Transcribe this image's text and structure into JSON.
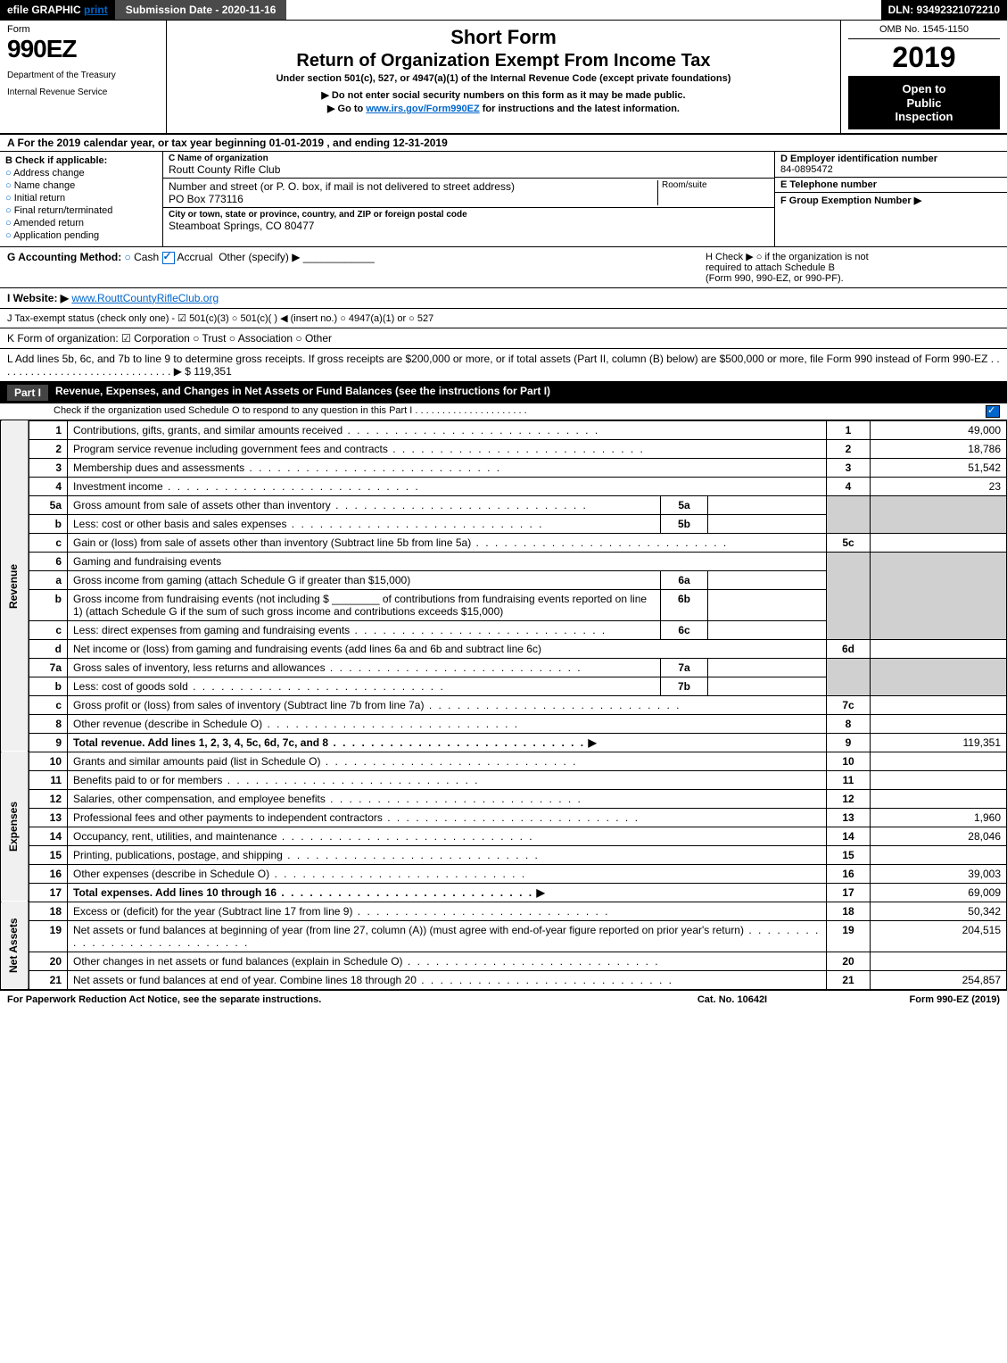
{
  "topbar": {
    "efile": "efile GRAPHIC",
    "print": "print",
    "submission": "Submission Date - 2020-11-16",
    "dln": "DLN: 93492321072210"
  },
  "header": {
    "form_label": "Form",
    "form_number": "990EZ",
    "dept1": "Department of the Treasury",
    "dept2": "Internal Revenue Service",
    "title1": "Short Form",
    "title2": "Return of Organization Exempt From Income Tax",
    "subtitle": "Under section 501(c), 527, or 4947(a)(1) of the Internal Revenue Code (except private foundations)",
    "note1": "▶ Do not enter social security numbers on this form as it may be made public.",
    "note2_pre": "▶ Go to ",
    "note2_link": "www.irs.gov/Form990EZ",
    "note2_post": " for instructions and the latest information.",
    "omb": "OMB No. 1545-1150",
    "year": "2019",
    "open1": "Open to",
    "open2": "Public",
    "open3": "Inspection"
  },
  "tax_year": "A  For the 2019 calendar year, or tax year beginning 01-01-2019 , and ending 12-31-2019",
  "section_b": {
    "label": "B  Check if applicable:",
    "items": [
      "Address change",
      "Name change",
      "Initial return",
      "Final return/terminated",
      "Amended return",
      "Application pending"
    ]
  },
  "section_c": {
    "name_label": "C Name of organization",
    "name": "Routt County Rifle Club",
    "addr_label": "Number and street (or P. O. box, if mail is not delivered to street address)",
    "room_label": "Room/suite",
    "addr": "PO Box 773116",
    "city_label": "City or town, state or province, country, and ZIP or foreign postal code",
    "city": "Steamboat Springs, CO  80477"
  },
  "section_d": {
    "label": "D Employer identification number",
    "value": "84-0895472"
  },
  "section_e": {
    "label": "E Telephone number",
    "value": ""
  },
  "section_f": {
    "label": "F Group Exemption Number  ▶",
    "value": ""
  },
  "section_g": {
    "label": "G Accounting Method:",
    "cash": "Cash",
    "accrual": "Accrual",
    "other": "Other (specify) ▶"
  },
  "section_h": {
    "line1": "H  Check ▶  ○  if the organization is not",
    "line2": "required to attach Schedule B",
    "line3": "(Form 990, 990-EZ, or 990-PF)."
  },
  "section_i": {
    "label": "I Website: ▶",
    "value": "www.RouttCountyRifleClub.org"
  },
  "section_j": "J Tax-exempt status (check only one) - ☑ 501(c)(3) ○ 501(c)(  ) ◀ (insert no.) ○ 4947(a)(1) or ○ 527",
  "section_k": "K Form of organization:  ☑ Corporation  ○ Trust  ○ Association  ○ Other",
  "section_l": {
    "text": "L Add lines 5b, 6c, and 7b to line 9 to determine gross receipts. If gross receipts are $200,000 or more, or if total assets (Part II, column (B) below) are $500,000 or more, file Form 990 instead of Form 990-EZ . . . . . . . . . . . . . . . . . . . . . . . . . . . . . . ▶",
    "amount": "$ 119,351"
  },
  "part1": {
    "label": "Part I",
    "title": "Revenue, Expenses, and Changes in Net Assets or Fund Balances (see the instructions for Part I)",
    "sched_o": "Check if the organization used Schedule O to respond to any question in this Part I . . . . . . . . . . . . . . . . . . . . ."
  },
  "revenue_side": "Revenue",
  "expenses_side": "Expenses",
  "netassets_side": "Net Assets",
  "lines": {
    "l1": {
      "n": "1",
      "d": "Contributions, gifts, grants, and similar amounts received",
      "ln": "1",
      "amt": "49,000"
    },
    "l2": {
      "n": "2",
      "d": "Program service revenue including government fees and contracts",
      "ln": "2",
      "amt": "18,786"
    },
    "l3": {
      "n": "3",
      "d": "Membership dues and assessments",
      "ln": "3",
      "amt": "51,542"
    },
    "l4": {
      "n": "4",
      "d": "Investment income",
      "ln": "4",
      "amt": "23"
    },
    "l5a": {
      "n": "5a",
      "d": "Gross amount from sale of assets other than inventory",
      "sub": "5a"
    },
    "l5b": {
      "n": "b",
      "d": "Less: cost or other basis and sales expenses",
      "sub": "5b"
    },
    "l5c": {
      "n": "c",
      "d": "Gain or (loss) from sale of assets other than inventory (Subtract line 5b from line 5a)",
      "ln": "5c",
      "amt": ""
    },
    "l6": {
      "n": "6",
      "d": "Gaming and fundraising events"
    },
    "l6a": {
      "n": "a",
      "d": "Gross income from gaming (attach Schedule G if greater than $15,000)",
      "sub": "6a"
    },
    "l6b": {
      "n": "b",
      "d1": "Gross income from fundraising events (not including $",
      "d2": "of contributions from fundraising events reported on line 1) (attach Schedule G if the sum of such gross income and contributions exceeds $15,000)",
      "sub": "6b"
    },
    "l6c": {
      "n": "c",
      "d": "Less: direct expenses from gaming and fundraising events",
      "sub": "6c"
    },
    "l6d": {
      "n": "d",
      "d": "Net income or (loss) from gaming and fundraising events (add lines 6a and 6b and subtract line 6c)",
      "ln": "6d",
      "amt": ""
    },
    "l7a": {
      "n": "7a",
      "d": "Gross sales of inventory, less returns and allowances",
      "sub": "7a"
    },
    "l7b": {
      "n": "b",
      "d": "Less: cost of goods sold",
      "sub": "7b"
    },
    "l7c": {
      "n": "c",
      "d": "Gross profit or (loss) from sales of inventory (Subtract line 7b from line 7a)",
      "ln": "7c",
      "amt": ""
    },
    "l8": {
      "n": "8",
      "d": "Other revenue (describe in Schedule O)",
      "ln": "8",
      "amt": ""
    },
    "l9": {
      "n": "9",
      "d": "Total revenue. Add lines 1, 2, 3, 4, 5c, 6d, 7c, and 8",
      "ln": "9",
      "amt": "119,351"
    },
    "l10": {
      "n": "10",
      "d": "Grants and similar amounts paid (list in Schedule O)",
      "ln": "10",
      "amt": ""
    },
    "l11": {
      "n": "11",
      "d": "Benefits paid to or for members",
      "ln": "11",
      "amt": ""
    },
    "l12": {
      "n": "12",
      "d": "Salaries, other compensation, and employee benefits",
      "ln": "12",
      "amt": ""
    },
    "l13": {
      "n": "13",
      "d": "Professional fees and other payments to independent contractors",
      "ln": "13",
      "amt": "1,960"
    },
    "l14": {
      "n": "14",
      "d": "Occupancy, rent, utilities, and maintenance",
      "ln": "14",
      "amt": "28,046"
    },
    "l15": {
      "n": "15",
      "d": "Printing, publications, postage, and shipping",
      "ln": "15",
      "amt": ""
    },
    "l16": {
      "n": "16",
      "d": "Other expenses (describe in Schedule O)",
      "ln": "16",
      "amt": "39,003"
    },
    "l17": {
      "n": "17",
      "d": "Total expenses. Add lines 10 through 16",
      "ln": "17",
      "amt": "69,009"
    },
    "l18": {
      "n": "18",
      "d": "Excess or (deficit) for the year (Subtract line 17 from line 9)",
      "ln": "18",
      "amt": "50,342"
    },
    "l19": {
      "n": "19",
      "d": "Net assets or fund balances at beginning of year (from line 27, column (A)) (must agree with end-of-year figure reported on prior year's return)",
      "ln": "19",
      "amt": "204,515"
    },
    "l20": {
      "n": "20",
      "d": "Other changes in net assets or fund balances (explain in Schedule O)",
      "ln": "20",
      "amt": ""
    },
    "l21": {
      "n": "21",
      "d": "Net assets or fund balances at end of year. Combine lines 18 through 20",
      "ln": "21",
      "amt": "254,857"
    }
  },
  "footer": {
    "left": "For Paperwork Reduction Act Notice, see the separate instructions.",
    "mid": "Cat. No. 10642I",
    "right": "Form 990-EZ (2019)"
  },
  "colors": {
    "black": "#000000",
    "white": "#ffffff",
    "gray_dark": "#4a4a4a",
    "gray_shade": "#d0d0d0",
    "link": "#0066cc"
  }
}
